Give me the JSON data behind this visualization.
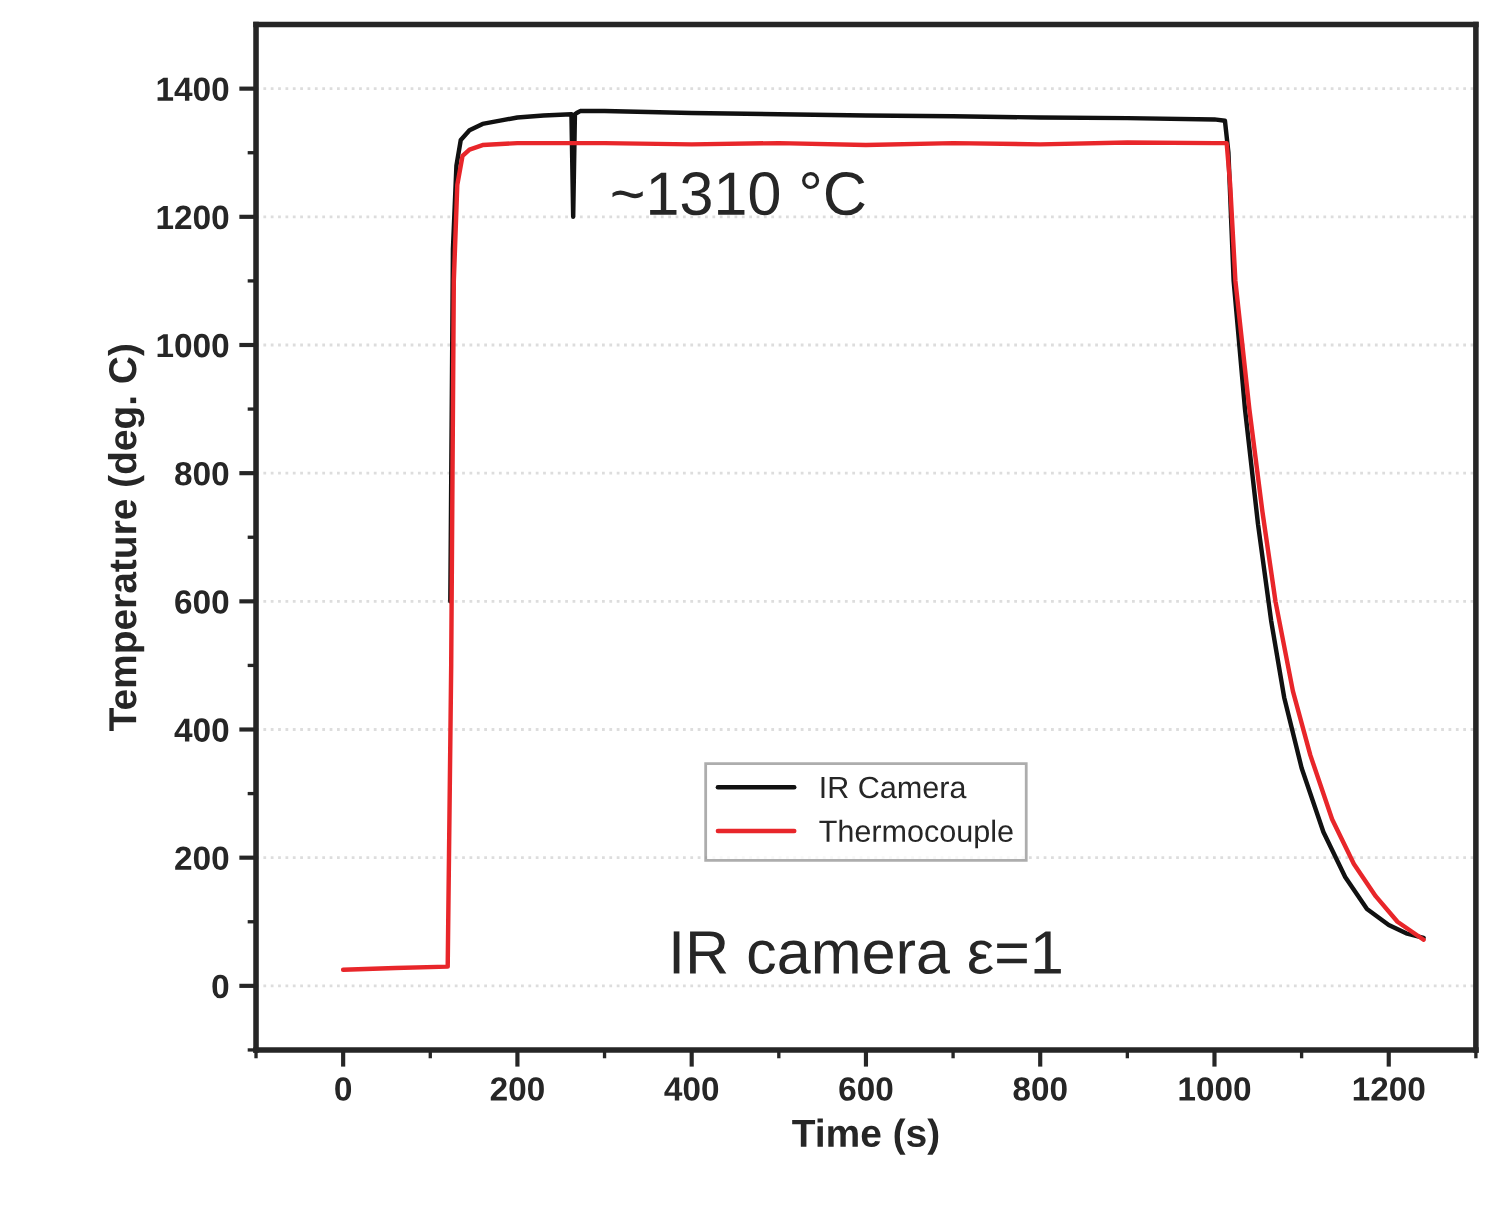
{
  "chart_data": {
    "type": "line",
    "xlabel": "Time (s)",
    "ylabel": "Temperature (deg. C)",
    "annotations": [
      "~1310 °C",
      "IR camera ε=1"
    ],
    "xlim": [
      -100,
      1300
    ],
    "ylim": [
      -100,
      1500
    ],
    "xticks": [
      0,
      200,
      400,
      600,
      800,
      1000,
      1200
    ],
    "yticks": [
      0,
      200,
      400,
      600,
      800,
      1000,
      1200,
      1400
    ],
    "grid": "y",
    "legend": "bottom",
    "marker": "none",
    "line_style": "solid",
    "series": [
      {
        "name": "IR Camera",
        "color": "#111111",
        "x": [
          123,
          126,
          130,
          135,
          145,
          160,
          180,
          200,
          230,
          262,
          264,
          266,
          268,
          272,
          300,
          400,
          500,
          600,
          700,
          800,
          900,
          1000,
          1012,
          1016,
          1022,
          1035,
          1050,
          1065,
          1080,
          1100,
          1125,
          1150,
          1175,
          1200,
          1220,
          1240
        ],
        "values": [
          600,
          1150,
          1280,
          1320,
          1335,
          1345,
          1350,
          1355,
          1358,
          1360,
          1200,
          1360,
          1362,
          1365,
          1365,
          1362,
          1360,
          1358,
          1357,
          1355,
          1354,
          1352,
          1350,
          1300,
          1100,
          900,
          720,
          570,
          450,
          340,
          240,
          170,
          120,
          95,
          82,
          75
        ]
      },
      {
        "name": "Thermocouple",
        "color": "#e8262a",
        "x": [
          0,
          60,
          120,
          124,
          127,
          131,
          137,
          145,
          160,
          200,
          300,
          400,
          500,
          600,
          700,
          800,
          900,
          1000,
          1014,
          1018,
          1024,
          1040,
          1055,
          1070,
          1090,
          1110,
          1135,
          1160,
          1185,
          1210,
          1240
        ],
        "values": [
          25,
          28,
          30,
          500,
          1100,
          1250,
          1295,
          1305,
          1312,
          1315,
          1315,
          1313,
          1315,
          1312,
          1315,
          1313,
          1316,
          1315,
          1315,
          1250,
          1100,
          900,
          740,
          600,
          460,
          360,
          260,
          190,
          140,
          100,
          72
        ]
      }
    ]
  }
}
